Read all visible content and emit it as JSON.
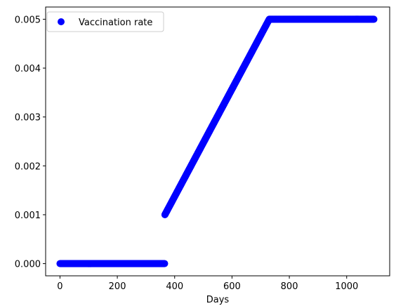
{
  "chart_data": {
    "type": "scatter",
    "title": "",
    "xlabel": "Days",
    "ylabel": "",
    "xlim": [
      -50,
      1150
    ],
    "ylim": [
      -0.00025,
      0.00525
    ],
    "xticks": [
      0,
      200,
      400,
      600,
      800,
      1000
    ],
    "xtick_labels": [
      "0",
      "200",
      "400",
      "600",
      "800",
      "1000"
    ],
    "yticks": [
      0,
      0.001,
      0.002,
      0.003,
      0.004,
      0.005
    ],
    "ytick_labels": [
      "0.000",
      "0.001",
      "0.002",
      "0.003",
      "0.004",
      "0.005"
    ],
    "grid": false,
    "legend": {
      "position": "top-left"
    },
    "series": [
      {
        "name": "Vaccination rate",
        "color": "#0000ff",
        "marker": "circle",
        "segments": [
          {
            "x_start": 0,
            "x_end": 365,
            "y_start": 0.0,
            "y_end": 0.0
          },
          {
            "x_start": 366,
            "x_end": 730,
            "y_start": 0.001,
            "y_end": 0.005
          },
          {
            "x_start": 731,
            "x_end": 1095,
            "y_start": 0.005,
            "y_end": 0.005
          }
        ],
        "step_days": 1
      }
    ]
  }
}
